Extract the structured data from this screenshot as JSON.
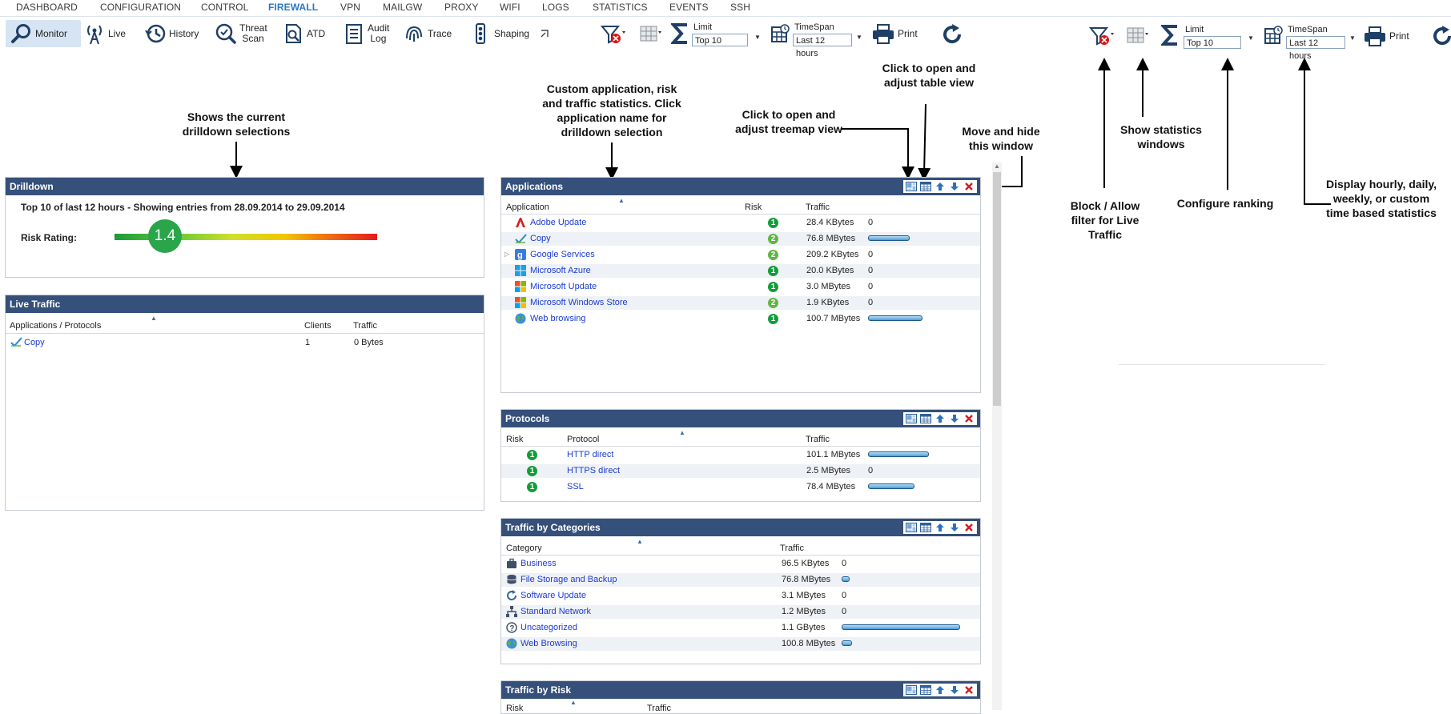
{
  "menu": [
    "DASHBOARD",
    "CONFIGURATION",
    "CONTROL",
    "FIREWALL",
    "VPN",
    "MAILGW",
    "PROXY",
    "WIFI",
    "LOGS",
    "STATISTICS",
    "EVENTS",
    "SSH"
  ],
  "active_menu": "FIREWALL",
  "toolbar": {
    "monitor": "Monitor",
    "live": "Live",
    "history": "History",
    "threat_scan_1": "Threat",
    "threat_scan_2": "Scan",
    "atd": "ATD",
    "audit_log_1": "Audit",
    "audit_log_2": "Log",
    "trace": "Trace",
    "shaping": "Shaping",
    "limit_label": "Limit",
    "limit_value": "Top 10",
    "timespan_label": "TimeSpan",
    "timespan_value": "Last 12 hours",
    "print": "Print"
  },
  "annotations": {
    "drilldown": "Shows the current drilldown selections",
    "custom": "Custom application, risk and traffic statistics. Click application name for drilldown selection",
    "treemap": "Click to open and adjust treemap view",
    "table": "Click to open and adjust table view",
    "move": "Move and hide this window",
    "block": "Block / Allow filter for  Live Traffic",
    "show_stats": "Show statistics windows",
    "ranking": "Configure ranking",
    "display": "Display hourly, daily, weekly, or custom time based statistics"
  },
  "drilldown": {
    "title": "Drilldown",
    "summary": "Top  10 of last  12 hours - Showing entries from 28.09.2014 to 29.09.2014",
    "risk_label": "Risk Rating:",
    "risk_value": "1.4"
  },
  "live_traffic": {
    "title": "Live Traffic",
    "columns": [
      "Applications / Protocols",
      "Clients",
      "Traffic"
    ],
    "rows": [
      {
        "name": "Copy",
        "clients": "1",
        "traffic": "0 Bytes"
      }
    ]
  },
  "applications": {
    "title": "Applications",
    "columns": [
      "Application",
      "Risk",
      "Traffic"
    ],
    "rows": [
      {
        "name": "Adobe Update",
        "icon": "adobe-icon",
        "risk": "1",
        "traffic": "28.4 KBytes",
        "bar": 0
      },
      {
        "name": "Copy",
        "icon": "copy-app-icon",
        "risk": "2",
        "traffic": "76.8 MBytes",
        "bar": 0.55
      },
      {
        "name": "Google Services",
        "icon": "google-icon",
        "risk": "2",
        "traffic": "209.2 KBytes",
        "bar": 0
      },
      {
        "name": "Microsoft Azure",
        "icon": "windows-icon",
        "risk": "1",
        "traffic": "20.0 KBytes",
        "bar": 0
      },
      {
        "name": "Microsoft Update",
        "icon": "windows-color-icon",
        "risk": "1",
        "traffic": "3.0 MBytes",
        "bar": 0
      },
      {
        "name": "Microsoft Windows Store",
        "icon": "windows-color-icon",
        "risk": "2",
        "traffic": "1.9 KBytes",
        "bar": 0
      },
      {
        "name": "Web browsing",
        "icon": "globe-icon",
        "risk": "1",
        "traffic": "100.7 MBytes",
        "bar": 0.72
      }
    ]
  },
  "protocols": {
    "title": "Protocols",
    "columns": [
      "Risk",
      "Protocol",
      "Traffic"
    ],
    "rows": [
      {
        "risk": "1",
        "name": "HTTP direct",
        "traffic": "101.1 MBytes",
        "bar": 0.72
      },
      {
        "risk": "1",
        "name": "HTTPS direct",
        "traffic": "2.5 MBytes",
        "bar": 0
      },
      {
        "risk": "1",
        "name": "SSL",
        "traffic": "78.4 MBytes",
        "bar": 0.55
      }
    ]
  },
  "categories": {
    "title": "Traffic by Categories",
    "columns": [
      "Category",
      "Traffic"
    ],
    "rows": [
      {
        "name": "Business",
        "icon": "briefcase-icon",
        "traffic": "96.5 KBytes",
        "bar": 0
      },
      {
        "name": "File Storage and Backup",
        "icon": "database-icon",
        "traffic": "76.8 MBytes",
        "bar": 0.07
      },
      {
        "name": "Software Update",
        "icon": "refresh-icon",
        "traffic": "3.1 MBytes",
        "bar": 0
      },
      {
        "name": "Standard Network",
        "icon": "network-icon",
        "traffic": "1.2 MBytes",
        "bar": 0
      },
      {
        "name": "Uncategorized",
        "icon": "question-icon",
        "traffic": "1.1 GBytes",
        "bar": 1.0
      },
      {
        "name": "Web Browsing",
        "icon": "globe-icon",
        "traffic": "100.8 MBytes",
        "bar": 0.09
      }
    ]
  },
  "risk_panel": {
    "title": "Traffic by Risk",
    "columns": [
      "Risk",
      "Traffic"
    ]
  }
}
